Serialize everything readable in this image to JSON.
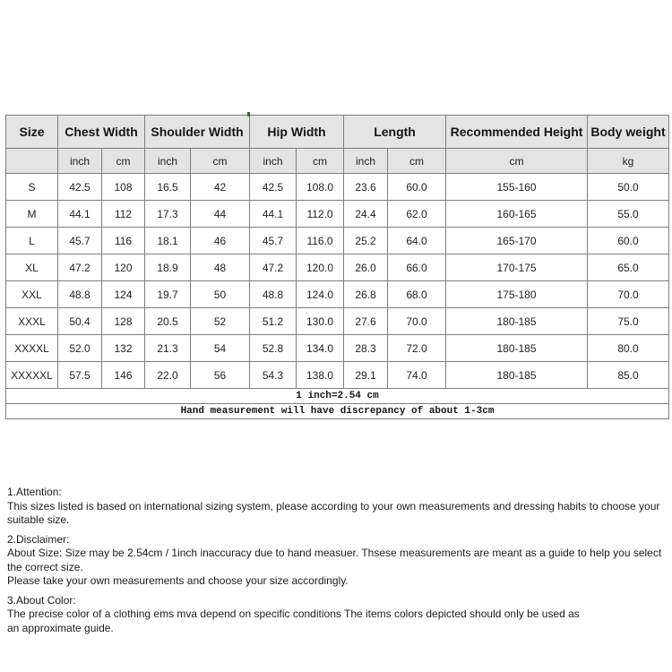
{
  "size_chart": {
    "header": {
      "size_label": "Size",
      "groups": [
        {
          "label": "Chest Width",
          "units": [
            "inch",
            "cm"
          ]
        },
        {
          "label": "Shoulder Width",
          "units": [
            "inch",
            "cm"
          ]
        },
        {
          "label": "Hip Width",
          "units": [
            "inch",
            "cm"
          ]
        },
        {
          "label": "Length",
          "units": [
            "inch",
            "cm"
          ]
        },
        {
          "label": "Recommended Height",
          "units": [
            "cm"
          ]
        },
        {
          "label": "Body weight",
          "units": [
            "kg"
          ]
        }
      ]
    },
    "rows": [
      {
        "size": "S",
        "cells": [
          "42.5",
          "108",
          "16.5",
          "42",
          "42.5",
          "108.0",
          "23.6",
          "60.0",
          "155-160",
          "50.0"
        ]
      },
      {
        "size": "M",
        "cells": [
          "44.1",
          "112",
          "17.3",
          "44",
          "44.1",
          "112.0",
          "24.4",
          "62.0",
          "160-165",
          "55.0"
        ]
      },
      {
        "size": "L",
        "cells": [
          "45.7",
          "116",
          "18.1",
          "46",
          "45.7",
          "116.0",
          "25.2",
          "64.0",
          "165-170",
          "60.0"
        ]
      },
      {
        "size": "XL",
        "cells": [
          "47.2",
          "120",
          "18.9",
          "48",
          "47.2",
          "120.0",
          "26.0",
          "66.0",
          "170-175",
          "65.0"
        ]
      },
      {
        "size": "XXL",
        "cells": [
          "48.8",
          "124",
          "19.7",
          "50",
          "48.8",
          "124.0",
          "26.8",
          "68.0",
          "175-180",
          "70.0"
        ]
      },
      {
        "size": "XXXL",
        "cells": [
          "50.4",
          "128",
          "20.5",
          "52",
          "51.2",
          "130.0",
          "27.6",
          "70.0",
          "180-185",
          "75.0"
        ]
      },
      {
        "size": "XXXXL",
        "cells": [
          "52.0",
          "132",
          "21.3",
          "54",
          "52.8",
          "134.0",
          "28.3",
          "72.0",
          "180-185",
          "80.0"
        ]
      },
      {
        "size": "XXXXXL",
        "cells": [
          "57.5",
          "146",
          "22.0",
          "56",
          "54.3",
          "138.0",
          "29.1",
          "74.0",
          "180-185",
          "85.0"
        ]
      }
    ],
    "footnotes": [
      "1 inch=2.54 cm",
      "Hand measurement will have discrepancy of about 1-3cm"
    ]
  },
  "notes": [
    {
      "heading": "1.Attention:",
      "lines": [
        "This sizes listed is based on international sizing system, please according to your own measurements and dressing habits to choose your suitable size."
      ]
    },
    {
      "heading": "2.Disclaimer:",
      "lines": [
        "About Size: Size may be 2.54cm / 1inch inaccuracy due to hand measuer. Thsese measurements are meant as a guide to help you select the correct size.",
        "Please take your own measurements and choose your size accordingly."
      ]
    },
    {
      "heading": "3.About Color:",
      "lines": [
        "The precise color of a clothing ems mva depend on specific conditions The items colors depicted should only be used as",
        "an approximate guide."
      ]
    }
  ],
  "colors": {
    "header_bg": "#e4e4e4",
    "border": "#7e7e7e",
    "text": "#1c1c1c",
    "artifact_green": "#217a21"
  }
}
